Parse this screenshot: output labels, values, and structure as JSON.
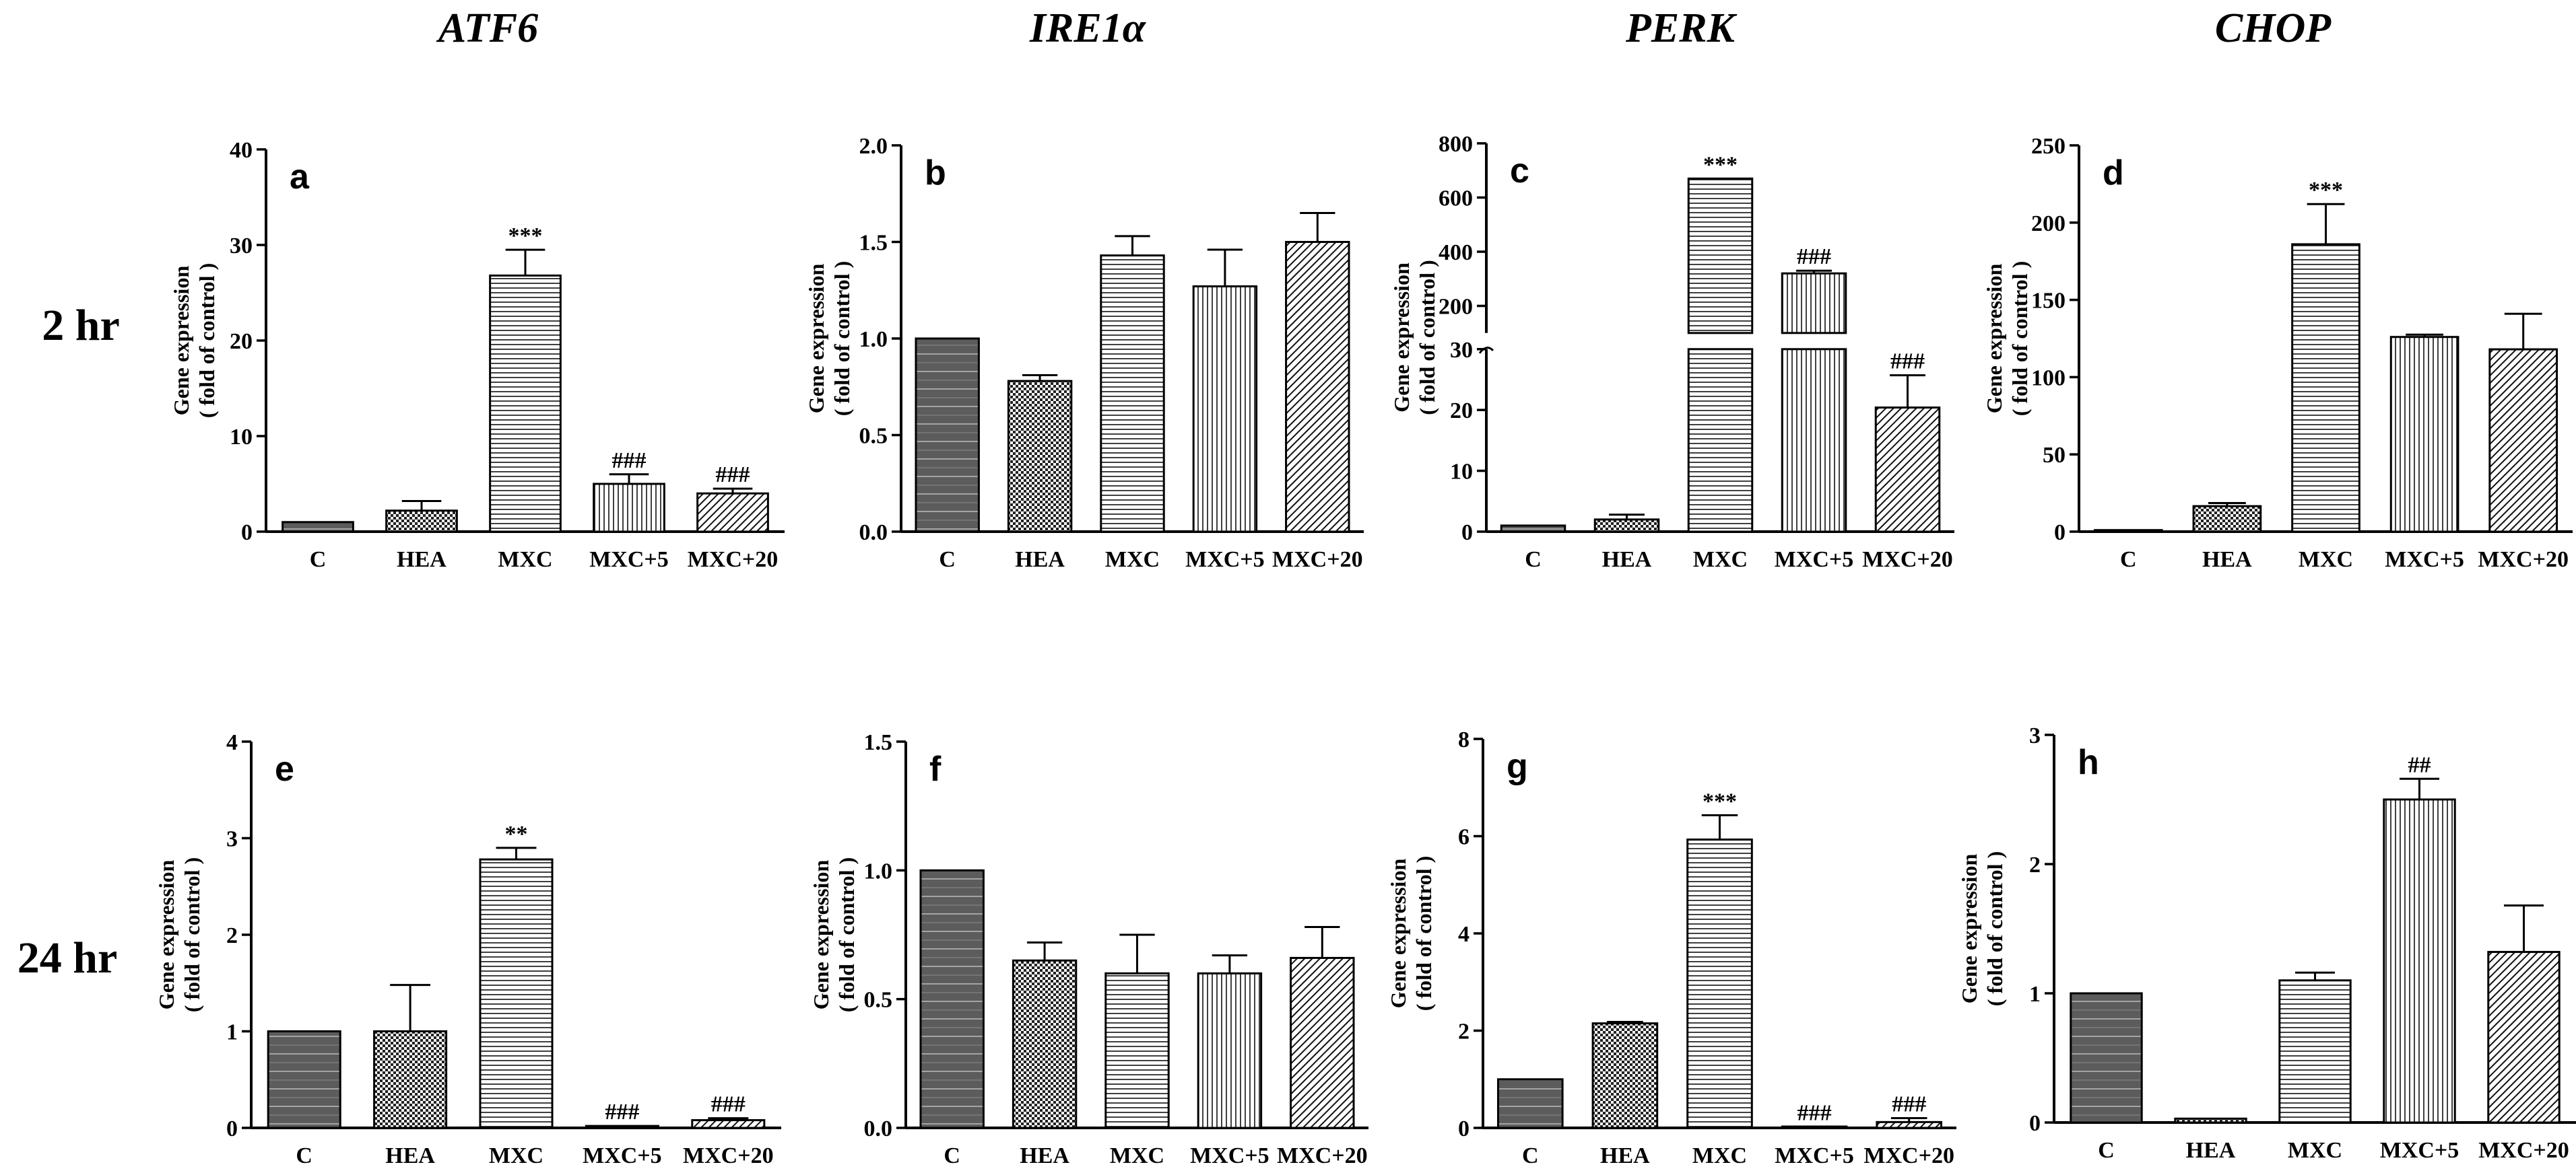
{
  "figure": {
    "column_titles": [
      "ATF6",
      "IRE1α",
      "PERK",
      "CHOP"
    ],
    "row_labels": [
      "2 hr",
      "24 hr"
    ],
    "ylabel_line1": "Gene expression",
    "ylabel_line2": "( fold of control )"
  },
  "colors": {
    "ink": "#000000",
    "bar_dark": "#555555",
    "bar_mid": "#777777",
    "paper": "#ffffff"
  },
  "chart_data": [
    {
      "id": "a",
      "type": "bar",
      "panel_label": "a",
      "title": "ATF6",
      "row": "2 hr",
      "categories": [
        "C",
        "HEA",
        "MXC",
        "MXC+5",
        "MXC+20"
      ],
      "values": [
        1.0,
        2.2,
        26.8,
        5.0,
        4.0
      ],
      "errors": [
        0,
        1.0,
        2.7,
        1.0,
        0.5
      ],
      "annotations": [
        "",
        "",
        "***",
        "###",
        "###"
      ],
      "ylim": [
        0,
        40
      ],
      "yticks": [
        0,
        10,
        20,
        30,
        40
      ],
      "ytick_labels": [
        "0",
        "10",
        "20",
        "30",
        "40"
      ],
      "ylabel": "Gene expression ( fold of control )"
    },
    {
      "id": "b",
      "type": "bar",
      "panel_label": "b",
      "title": "IRE1α",
      "row": "2 hr",
      "categories": [
        "C",
        "HEA",
        "MXC",
        "MXC+5",
        "MXC+20"
      ],
      "values": [
        1.0,
        0.78,
        1.43,
        1.27,
        1.5
      ],
      "errors": [
        0,
        0.03,
        0.1,
        0.19,
        0.15
      ],
      "annotations": [
        "",
        "",
        "",
        "",
        ""
      ],
      "ylim": [
        0,
        2.0
      ],
      "yticks": [
        0,
        0.5,
        1.0,
        1.5,
        2.0
      ],
      "ytick_labels": [
        "0.0",
        "0.5",
        "1.0",
        "1.5",
        "2.0"
      ],
      "ylabel": "Gene expression ( fold of control )"
    },
    {
      "id": "c",
      "type": "bar",
      "panel_label": "c",
      "title": "PERK",
      "row": "2 hr",
      "categories": [
        "C",
        "HEA",
        "MXC",
        "MXC+5",
        "MXC+20"
      ],
      "values": [
        1.0,
        2.0,
        670,
        320,
        20.4
      ],
      "errors": [
        0,
        0.8,
        0,
        10,
        5.3
      ],
      "annotations": [
        "",
        "",
        "***",
        "###",
        "###"
      ],
      "broken_axis": {
        "lower": [
          0,
          30
        ],
        "upper": [
          100,
          800
        ]
      },
      "yticks": [
        0,
        10,
        20,
        30,
        200,
        400,
        600,
        800
      ],
      "ytick_labels": [
        "0",
        "10",
        "20",
        "30",
        "200",
        "400",
        "600",
        "800"
      ],
      "ylabel": "Gene expression ( fold of control )"
    },
    {
      "id": "d",
      "type": "bar",
      "panel_label": "d",
      "title": "CHOP",
      "row": "2 hr",
      "categories": [
        "C",
        "HEA",
        "MXC",
        "MXC+5",
        "MXC+20"
      ],
      "values": [
        1.0,
        16.5,
        186,
        126,
        118
      ],
      "errors": [
        0,
        2.0,
        26,
        1.5,
        23
      ],
      "annotations": [
        "",
        "",
        "***",
        "",
        ""
      ],
      "ylim": [
        0,
        250
      ],
      "yticks": [
        0,
        50,
        100,
        150,
        200,
        250
      ],
      "ytick_labels": [
        "0",
        "50",
        "100",
        "150",
        "200",
        "250"
      ],
      "ylabel": "Gene expression ( fold of control )"
    },
    {
      "id": "e",
      "type": "bar",
      "panel_label": "e",
      "title": "ATF6",
      "row": "24 hr",
      "categories": [
        "C",
        "HEA",
        "MXC",
        "MXC+5",
        "MXC+20"
      ],
      "values": [
        1.0,
        1.0,
        2.78,
        0.02,
        0.08
      ],
      "errors": [
        0,
        0.48,
        0.12,
        0,
        0.02
      ],
      "annotations": [
        "",
        "",
        "**",
        "###",
        "###"
      ],
      "ylim": [
        0,
        4
      ],
      "yticks": [
        0,
        1,
        2,
        3,
        4
      ],
      "ytick_labels": [
        "0",
        "1",
        "2",
        "3",
        "4"
      ],
      "ylabel": "Gene expression ( fold of control )"
    },
    {
      "id": "f",
      "type": "bar",
      "panel_label": "f",
      "title": "IRE1α",
      "row": "24 hr",
      "categories": [
        "C",
        "HEA",
        "MXC",
        "MXC+5",
        "MXC+20"
      ],
      "values": [
        1.0,
        0.65,
        0.6,
        0.6,
        0.66
      ],
      "errors": [
        0,
        0.07,
        0.15,
        0.07,
        0.12
      ],
      "annotations": [
        "",
        "",
        "",
        "",
        ""
      ],
      "ylim": [
        0,
        1.5
      ],
      "yticks": [
        0,
        0.5,
        1.0,
        1.5
      ],
      "ytick_labels": [
        "0.0",
        "0.5",
        "1.0",
        "1.5"
      ],
      "ylabel": "Gene expression ( fold of control )"
    },
    {
      "id": "g",
      "type": "bar",
      "panel_label": "g",
      "title": "PERK",
      "row": "24 hr",
      "categories": [
        "C",
        "HEA",
        "MXC",
        "MXC+5",
        "MXC+20"
      ],
      "values": [
        1.0,
        2.15,
        5.93,
        0.02,
        0.12
      ],
      "errors": [
        0,
        0.03,
        0.5,
        0,
        0.08
      ],
      "annotations": [
        "",
        "",
        "***",
        "###",
        "###"
      ],
      "ylim": [
        0,
        8
      ],
      "yticks": [
        0,
        2,
        4,
        6,
        8
      ],
      "ytick_labels": [
        "0",
        "2",
        "4",
        "6",
        "8"
      ],
      "ylabel": "Gene expression ( fold of control )"
    },
    {
      "id": "h",
      "type": "bar",
      "panel_label": "h",
      "title": "CHOP",
      "row": "24 hr",
      "categories": [
        "C",
        "HEA",
        "MXC",
        "MXC+5",
        "MXC+20"
      ],
      "values": [
        1.0,
        0.03,
        1.1,
        2.5,
        1.32
      ],
      "errors": [
        0,
        0,
        0.06,
        0.16,
        0.36
      ],
      "annotations": [
        "",
        "",
        "",
        "##",
        ""
      ],
      "ylim": [
        0,
        3
      ],
      "yticks": [
        0,
        1,
        2,
        3
      ],
      "ytick_labels": [
        "0",
        "1",
        "2",
        "3"
      ],
      "ylabel": "Gene expression ( fold of control )"
    }
  ]
}
